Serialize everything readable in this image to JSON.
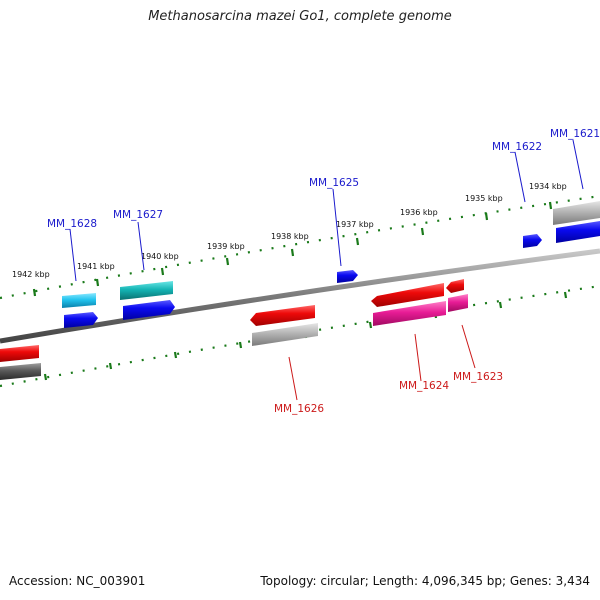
{
  "title": "Methanosarcina mazei Go1, complete genome",
  "footer": {
    "accession": "Accession: NC_003901",
    "summary": "Topology: circular; Length: 4,096,345 bp; Genes: 3,434"
  },
  "tick_labels": [
    "1942 kbp",
    "1941 kbp",
    "1940 kbp",
    "1939 kbp",
    "1938 kbp",
    "1937 kbp",
    "1936 kbp",
    "1935 kbp",
    "1934 kbp"
  ],
  "gene_labels": [
    "MM_1628",
    "MM_1627",
    "MM_1625",
    "MM_1622",
    "MM_1621",
    "MM_1626",
    "MM_1624",
    "MM_1623"
  ],
  "colors": {
    "backbone": "#8a8a8a",
    "ticks": "#1a7a1a",
    "forward_label": "#1a1acc",
    "reverse_label": "#cc1a1a",
    "blue": "#0a0af0",
    "red": "#ee0a0a",
    "cyan_light": "#22c4ee",
    "cyan_dark": "#14b4b4",
    "gray": "#b4b4b4",
    "gray_dark": "#5a5a5a",
    "magenta": "#e81c96"
  }
}
